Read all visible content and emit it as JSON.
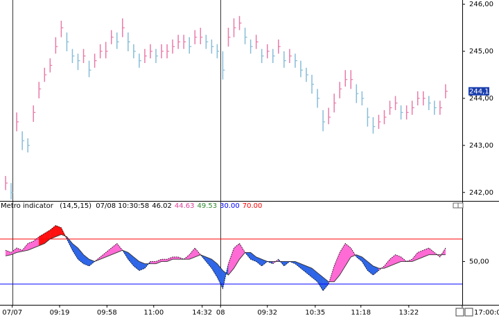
{
  "chart_data": [
    {
      "type": "ohlc",
      "x": [
        0,
        1,
        2,
        3,
        4,
        5,
        6,
        7,
        8,
        9,
        10,
        11,
        12,
        13,
        14,
        15,
        16,
        17,
        18,
        19,
        20,
        21,
        22,
        23,
        24,
        25,
        26,
        27,
        28,
        29,
        30,
        31,
        32,
        33,
        34,
        35,
        36,
        37,
        38,
        39,
        40,
        41,
        42,
        43,
        44,
        45,
        46,
        47,
        48,
        49,
        50,
        51,
        52,
        53,
        54,
        55,
        56,
        57,
        58,
        59,
        60,
        61,
        62,
        63,
        64,
        65,
        66,
        67,
        68,
        69,
        70,
        71,
        72,
        73,
        74,
        75,
        76,
        77,
        78,
        79
      ],
      "close": [
        242.2,
        242.0,
        243.5,
        243.1,
        243.0,
        243.7,
        244.2,
        244.5,
        244.7,
        245.1,
        245.5,
        245.2,
        244.9,
        244.8,
        244.9,
        244.6,
        244.8,
        245.0,
        245.0,
        245.3,
        245.2,
        245.5,
        245.2,
        245.0,
        244.8,
        244.9,
        245.0,
        244.9,
        245.0,
        245.0,
        245.1,
        245.2,
        245.2,
        245.1,
        245.3,
        245.3,
        245.2,
        245.1,
        245.0,
        244.6,
        245.3,
        245.5,
        245.6,
        245.3,
        245.1,
        245.2,
        244.9,
        245.0,
        244.9,
        245.1,
        244.8,
        244.9,
        244.8,
        244.6,
        244.5,
        244.3,
        244.0,
        243.5,
        243.6,
        243.9,
        244.2,
        244.4,
        244.4,
        244.1,
        244.0,
        243.6,
        243.4,
        243.5,
        243.6,
        243.8,
        243.9,
        243.7,
        243.7,
        243.8,
        244.0,
        244.0,
        243.9,
        243.8,
        243.8,
        244.15
      ],
      "high": [
        242.35,
        242.2,
        243.7,
        243.3,
        243.15,
        243.85,
        244.35,
        244.65,
        244.85,
        245.3,
        245.65,
        245.4,
        245.05,
        244.95,
        245.05,
        244.8,
        244.95,
        245.15,
        245.2,
        245.45,
        245.4,
        245.7,
        245.4,
        245.15,
        244.95,
        245.05,
        245.15,
        245.05,
        245.15,
        245.15,
        245.25,
        245.35,
        245.35,
        245.3,
        245.45,
        245.5,
        245.35,
        245.25,
        245.15,
        245.0,
        245.5,
        245.7,
        245.75,
        245.5,
        245.25,
        245.35,
        245.05,
        245.15,
        245.05,
        245.25,
        245.0,
        245.05,
        244.95,
        244.8,
        244.65,
        244.5,
        244.2,
        243.75,
        243.8,
        244.1,
        244.35,
        244.6,
        244.6,
        244.3,
        244.15,
        243.8,
        243.6,
        243.65,
        243.75,
        243.95,
        244.05,
        243.85,
        243.85,
        243.95,
        244.15,
        244.15,
        244.05,
        243.95,
        243.95,
        244.3
      ],
      "low": [
        242.05,
        241.85,
        243.3,
        242.9,
        242.85,
        243.5,
        244.0,
        244.35,
        244.55,
        244.95,
        245.3,
        245.0,
        244.75,
        244.6,
        244.75,
        244.45,
        244.65,
        244.85,
        244.85,
        245.15,
        245.05,
        245.3,
        245.0,
        244.85,
        244.65,
        244.75,
        244.85,
        244.75,
        244.85,
        244.85,
        244.95,
        245.05,
        245.05,
        244.95,
        245.15,
        245.15,
        245.05,
        244.95,
        244.85,
        244.4,
        245.1,
        245.3,
        245.45,
        245.15,
        244.95,
        245.05,
        244.75,
        244.85,
        244.75,
        244.95,
        244.65,
        244.75,
        244.65,
        244.45,
        244.35,
        244.1,
        243.8,
        243.3,
        243.45,
        243.7,
        244.0,
        244.25,
        244.2,
        243.9,
        243.85,
        243.4,
        243.25,
        243.35,
        243.45,
        243.65,
        243.75,
        243.55,
        243.55,
        243.65,
        243.85,
        243.85,
        243.75,
        243.65,
        243.65,
        244.0
      ],
      "up_color": "#e87aa8",
      "down_color": "#86bcd8",
      "xlim": [
        -1,
        82
      ],
      "ylim": [
        241.82,
        246.09
      ],
      "yticks": [
        {
          "value": 242,
          "label": "242,00"
        },
        {
          "value": 243,
          "label": "243,00"
        },
        {
          "value": 244,
          "label": "244,00"
        },
        {
          "value": 245,
          "label": "245,00"
        },
        {
          "value": 246,
          "label": "246,00"
        }
      ],
      "last_price": {
        "value": 244.15,
        "label": "244,15"
      }
    },
    {
      "type": "oscillator",
      "title": "Metro indicator",
      "params": "(14,5,15)",
      "timestamp": "07/08 10:30:58",
      "readout": [
        {
          "text": "46.02",
          "color": "#000000"
        },
        {
          "text": "44.63",
          "color": "#e0409a"
        },
        {
          "text": "49.53",
          "color": "#2e8b2e"
        },
        {
          "text": "30.00",
          "color": "#0000ff"
        },
        {
          "text": "70.00",
          "color": "#ff0000"
        }
      ],
      "x": [
        0,
        1,
        2,
        3,
        4,
        5,
        6,
        7,
        8,
        9,
        10,
        11,
        12,
        13,
        14,
        15,
        16,
        17,
        18,
        19,
        20,
        21,
        22,
        23,
        24,
        25,
        26,
        27,
        28,
        29,
        30,
        31,
        32,
        33,
        34,
        35,
        36,
        37,
        38,
        39,
        40,
        41,
        42,
        43,
        44,
        45,
        46,
        47,
        48,
        49,
        50,
        51,
        52,
        53,
        54,
        55,
        56,
        57,
        58,
        59,
        60,
        61,
        62,
        63,
        64,
        65,
        66,
        67,
        68,
        69,
        70,
        71,
        72,
        73,
        74,
        75,
        76,
        77,
        78,
        79
      ],
      "fast": [
        60,
        58,
        62,
        60,
        66,
        68,
        72,
        75,
        78,
        82,
        80,
        70,
        60,
        52,
        48,
        46,
        50,
        54,
        58,
        62,
        66,
        60,
        52,
        46,
        42,
        44,
        50,
        50,
        52,
        52,
        54,
        54,
        52,
        56,
        62,
        56,
        50,
        44,
        36,
        26,
        48,
        62,
        66,
        58,
        52,
        50,
        46,
        50,
        48,
        52,
        46,
        50,
        48,
        44,
        40,
        36,
        32,
        24,
        30,
        46,
        58,
        66,
        62,
        54,
        50,
        42,
        38,
        42,
        46,
        52,
        56,
        54,
        50,
        52,
        58,
        60,
        62,
        58,
        54,
        62
      ],
      "slow": [
        55,
        56,
        58,
        59,
        60,
        62,
        64,
        66,
        70,
        72,
        74,
        72,
        66,
        62,
        56,
        52,
        50,
        52,
        54,
        56,
        58,
        60,
        58,
        54,
        50,
        48,
        48,
        48,
        50,
        50,
        52,
        52,
        52,
        52,
        54,
        56,
        54,
        52,
        48,
        42,
        38,
        44,
        52,
        58,
        58,
        54,
        52,
        50,
        50,
        50,
        50,
        50,
        50,
        48,
        46,
        44,
        40,
        36,
        32,
        32,
        38,
        46,
        54,
        56,
        54,
        50,
        46,
        44,
        44,
        46,
        48,
        50,
        50,
        50,
        52,
        54,
        56,
        56,
        56,
        56
      ],
      "fast_color": "#000000",
      "slow_color": "#333333",
      "above_color": "#ff6ad5",
      "below_color": "#2f66e8",
      "overbought_color": "#ff1010",
      "levels": [
        {
          "value": 70,
          "color": "#ff0000"
        },
        {
          "value": 30,
          "color": "#0000ff"
        }
      ],
      "xlim": [
        -1,
        82
      ],
      "ylim": [
        11.5,
        103.2
      ],
      "yticks": [
        {
          "value": 50,
          "label": "50,00"
        }
      ],
      "xticks": [
        {
          "value": 1.2,
          "label": "07/07"
        },
        {
          "value": 9.7,
          "label": "09:19"
        },
        {
          "value": 18.2,
          "label": "09:58"
        },
        {
          "value": 26.6,
          "label": "11:00"
        },
        {
          "value": 35.3,
          "label": "14:32"
        },
        {
          "value": 38.6,
          "label": "08"
        },
        {
          "value": 47.0,
          "label": "09:32"
        },
        {
          "value": 55.6,
          "label": "10:35"
        },
        {
          "value": 63.8,
          "label": "11:18"
        },
        {
          "value": 72.4,
          "label": "13:22"
        },
        {
          "value": 82,
          "label": "17:00:00"
        }
      ]
    }
  ]
}
